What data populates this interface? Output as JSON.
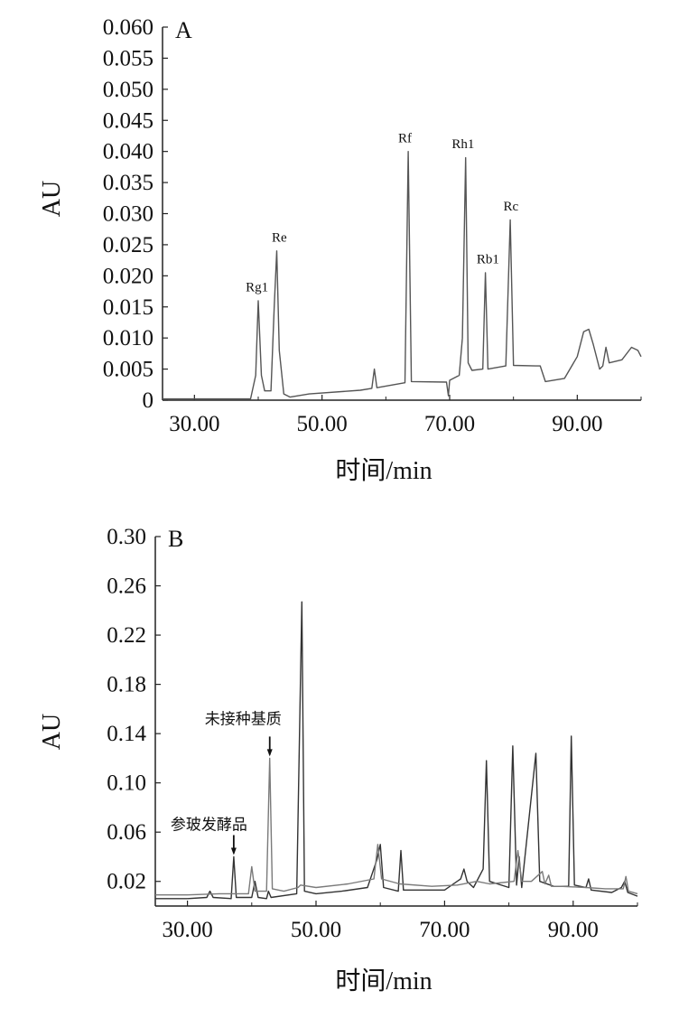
{
  "chart_data": [
    {
      "panel": "A",
      "type": "line",
      "xlabel": "时间/min",
      "ylabel": "AU",
      "xlim": [
        25,
        100
      ],
      "ylim": [
        0,
        0.06
      ],
      "x_ticks": [
        30,
        50,
        70,
        90
      ],
      "x_tick_labels": [
        "30.00",
        "50.00",
        "70.00",
        "90.00"
      ],
      "y_ticks": [
        0,
        0.005,
        0.01,
        0.015,
        0.02,
        0.025,
        0.03,
        0.035,
        0.04,
        0.045,
        0.05,
        0.055,
        0.06
      ],
      "y_tick_labels": [
        "0",
        "0.005",
        "0.010",
        "0.015",
        "0.020",
        "0.025",
        "0.030",
        "0.035",
        "0.040",
        "0.045",
        "0.050",
        "0.055",
        "0.060"
      ],
      "series": [
        {
          "color": "#555555",
          "points": [
            [
              25,
              0.0002
            ],
            [
              38.8,
              0.0002
            ],
            [
              39.6,
              0.004
            ],
            [
              40,
              0.016
            ],
            [
              40.5,
              0.004
            ],
            [
              41,
              0.0015
            ],
            [
              42,
              0.0015
            ],
            [
              42.5,
              0.015
            ],
            [
              42.9,
              0.024
            ],
            [
              43.3,
              0.008
            ],
            [
              44,
              0.001
            ],
            [
              45,
              0.0005
            ],
            [
              48,
              0.001
            ],
            [
              56,
              0.0016
            ],
            [
              57.8,
              0.0019
            ],
            [
              58.2,
              0.005
            ],
            [
              58.6,
              0.002
            ],
            [
              63,
              0.0028
            ],
            [
              63.5,
              0.04
            ],
            [
              64,
              0.003
            ],
            [
              69.5,
              0.0029
            ],
            [
              69.8,
              0.0007
            ],
            [
              70,
              0.0032
            ],
            [
              71.5,
              0.004
            ],
            [
              72,
              0.01
            ],
            [
              72.5,
              0.039
            ],
            [
              72.9,
              0.006
            ],
            [
              73.5,
              0.0048
            ],
            [
              75.2,
              0.005
            ],
            [
              75.6,
              0.0205
            ],
            [
              76,
              0.005
            ],
            [
              78.8,
              0.0055
            ],
            [
              79.5,
              0.029
            ],
            [
              80,
              0.0056
            ],
            [
              83.5,
              0.0055
            ],
            [
              84.2,
              0.0055
            ],
            [
              85,
              0.003
            ],
            [
              88,
              0.0035
            ],
            [
              90,
              0.007
            ],
            [
              91,
              0.011
            ],
            [
              91.8,
              0.0114
            ],
            [
              92.5,
              0.009
            ],
            [
              93.5,
              0.005
            ],
            [
              94,
              0.0055
            ],
            [
              94.5,
              0.0085
            ],
            [
              95,
              0.006
            ],
            [
              97,
              0.0065
            ],
            [
              98.5,
              0.0085
            ],
            [
              99.5,
              0.008
            ],
            [
              100,
              0.007
            ]
          ]
        }
      ],
      "peak_labels": [
        {
          "text": "Rg1",
          "x": 39.8,
          "y": 0.0175
        },
        {
          "text": "Re",
          "x": 43.3,
          "y": 0.0255
        },
        {
          "text": "Rf",
          "x": 63,
          "y": 0.0415
        },
        {
          "text": "Rh1",
          "x": 72.1,
          "y": 0.0405
        },
        {
          "text": "Rb1",
          "x": 76,
          "y": 0.022
        },
        {
          "text": "Rc",
          "x": 79.6,
          "y": 0.0305
        }
      ]
    },
    {
      "panel": "B",
      "type": "line",
      "xlabel": "时间/min",
      "ylabel": "AU",
      "xlim": [
        25,
        100
      ],
      "ylim": [
        0,
        0.3
      ],
      "x_ticks": [
        30,
        50,
        70,
        90
      ],
      "x_tick_labels": [
        "30.00",
        "50.00",
        "70.00",
        "90.00"
      ],
      "y_ticks": [
        0.02,
        0.06,
        0.1,
        0.14,
        0.18,
        0.22,
        0.26,
        0.3
      ],
      "y_tick_labels": [
        "0.02",
        "0.06",
        "0.10",
        "0.14",
        "0.18",
        "0.22",
        "0.26",
        "0.30"
      ],
      "series": [
        {
          "name": "参玻发酵品",
          "color": "#333333",
          "points": [
            [
              25,
              0.006
            ],
            [
              30,
              0.006
            ],
            [
              33,
              0.007
            ],
            [
              33.5,
              0.012
            ],
            [
              34,
              0.007
            ],
            [
              36.8,
              0.006
            ],
            [
              37.2,
              0.04
            ],
            [
              37.6,
              0.007
            ],
            [
              40,
              0.007
            ],
            [
              40.5,
              0.02
            ],
            [
              41,
              0.007
            ],
            [
              42.3,
              0.006
            ],
            [
              42.6,
              0.012
            ],
            [
              43,
              0.007
            ],
            [
              47,
              0.01
            ],
            [
              47.8,
              0.247
            ],
            [
              48.2,
              0.012
            ],
            [
              50,
              0.01
            ],
            [
              54,
              0.012
            ],
            [
              58,
              0.015
            ],
            [
              59.5,
              0.038
            ],
            [
              60,
              0.05
            ],
            [
              60.5,
              0.015
            ],
            [
              62.8,
              0.012
            ],
            [
              63.2,
              0.045
            ],
            [
              63.6,
              0.013
            ],
            [
              70,
              0.013
            ],
            [
              72.5,
              0.022
            ],
            [
              73,
              0.03
            ],
            [
              73.5,
              0.02
            ],
            [
              74.5,
              0.015
            ],
            [
              76,
              0.03
            ],
            [
              76.5,
              0.118
            ],
            [
              77,
              0.02
            ],
            [
              80,
              0.015
            ],
            [
              80.6,
              0.13
            ],
            [
              81.2,
              0.017
            ],
            [
              81.6,
              0.04
            ],
            [
              82,
              0.015
            ],
            [
              84.2,
              0.124
            ],
            [
              84.8,
              0.02
            ],
            [
              87,
              0.016
            ],
            [
              89.3,
              0.016
            ],
            [
              89.7,
              0.138
            ],
            [
              90.2,
              0.017
            ],
            [
              92,
              0.015
            ],
            [
              92.4,
              0.022
            ],
            [
              92.8,
              0.013
            ],
            [
              96,
              0.011
            ],
            [
              97.5,
              0.015
            ],
            [
              98,
              0.02
            ],
            [
              98.5,
              0.011
            ],
            [
              100,
              0.008
            ]
          ]
        },
        {
          "name": "未接种基质",
          "color": "#7a7a7a",
          "points": [
            [
              25,
              0.009
            ],
            [
              30,
              0.009
            ],
            [
              35,
              0.01
            ],
            [
              39.5,
              0.01
            ],
            [
              40,
              0.032
            ],
            [
              40.5,
              0.012
            ],
            [
              42.3,
              0.012
            ],
            [
              42.8,
              0.12
            ],
            [
              43.2,
              0.014
            ],
            [
              45,
              0.012
            ],
            [
              47.2,
              0.015
            ],
            [
              47.6,
              0.017
            ],
            [
              50,
              0.015
            ],
            [
              55,
              0.018
            ],
            [
              59,
              0.022
            ],
            [
              59.6,
              0.05
            ],
            [
              60.2,
              0.022
            ],
            [
              63,
              0.018
            ],
            [
              68,
              0.016
            ],
            [
              72,
              0.017
            ],
            [
              75,
              0.02
            ],
            [
              77,
              0.018
            ],
            [
              80.8,
              0.02
            ],
            [
              81.4,
              0.045
            ],
            [
              82,
              0.02
            ],
            [
              83.5,
              0.02
            ],
            [
              85.2,
              0.028
            ],
            [
              85.6,
              0.018
            ],
            [
              86.2,
              0.025
            ],
            [
              86.6,
              0.016
            ],
            [
              88,
              0.016
            ],
            [
              92,
              0.015
            ],
            [
              95,
              0.014
            ],
            [
              97.8,
              0.014
            ],
            [
              98.2,
              0.024
            ],
            [
              98.6,
              0.012
            ],
            [
              100,
              0.01
            ]
          ]
        }
      ],
      "annotations": [
        {
          "text": "未接种基质",
          "target_x": 42.8,
          "target_y": 0.12
        },
        {
          "text": "参玻发酵品",
          "target_x": 37.2,
          "target_y": 0.04
        }
      ]
    }
  ]
}
